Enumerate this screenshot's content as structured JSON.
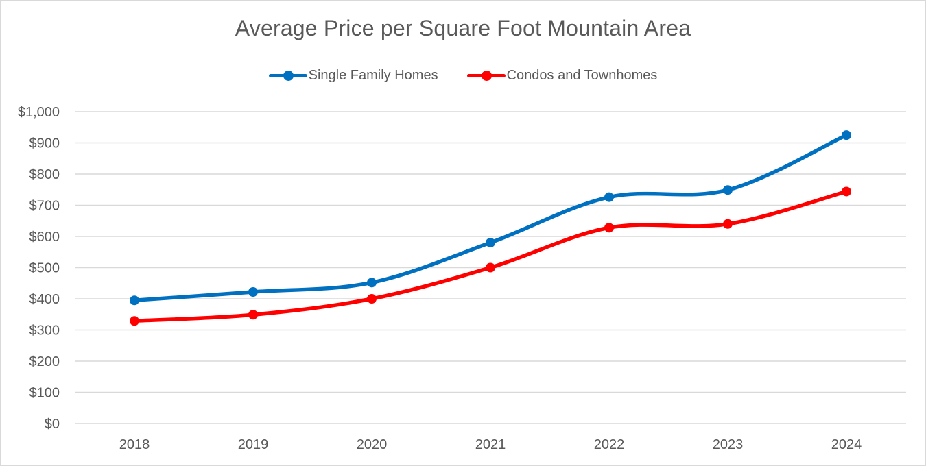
{
  "chart_data": {
    "type": "line",
    "title": "Average Price per Square Foot Mountain Area",
    "categories": [
      "2018",
      "2019",
      "2020",
      "2021",
      "2022",
      "2023",
      "2024"
    ],
    "series": [
      {
        "name": "Single Family Homes",
        "color": "#0070c0",
        "values": [
          395,
          422,
          452,
          580,
          726,
          749,
          925
        ]
      },
      {
        "name": "Condos and Townhomes",
        "color": "#ff0000",
        "values": [
          329,
          349,
          400,
          500,
          628,
          640,
          744
        ]
      }
    ],
    "y_ticks": [
      "$0",
      "$100",
      "$200",
      "$300",
      "$400",
      "$500",
      "$600",
      "$700",
      "$800",
      "$900",
      "$1,000"
    ],
    "ylim": [
      0,
      1000
    ],
    "xlabel": "",
    "ylabel": "",
    "grid": true,
    "legend_position": "top",
    "smooth": true
  }
}
